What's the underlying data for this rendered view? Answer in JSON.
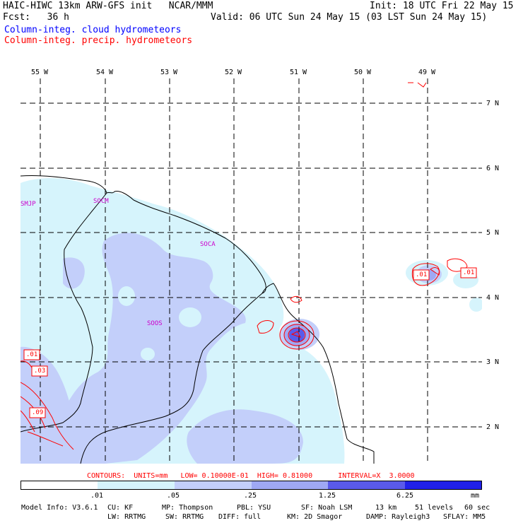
{
  "header": {
    "title": "HAIC-HIWC 13km ARW-GFS init   NCAR/MMM",
    "init": "Init: 18 UTC Fri 22 May 15",
    "fcst": "Fcst:   36 h",
    "valid": "Valid: 06 UTC Sun 24 May 15 (03 LST Sun 24 May 15)",
    "field_cloud": "Column-integ. cloud hydrometeors",
    "field_precip": "Column-integ. precip. hydrometeors",
    "cloud_color": "#0000ff",
    "precip_color": "#ff0000"
  },
  "map": {
    "lon_labels": [
      "55 W",
      "54 W",
      "53 W",
      "52 W",
      "51 W",
      "50 W",
      "49 W"
    ],
    "lat_labels": [
      "7 N",
      "6 N",
      "5 N",
      "4 N",
      "3 N",
      "2 N"
    ],
    "stations": [
      "SMJP",
      "SOCM",
      "SOCA",
      "SOOS"
    ],
    "contour_labels": [
      ".01",
      ".01",
      ".01",
      ".03",
      ".09"
    ],
    "station_color": "#cc00cc",
    "contour_color": "#ff0000"
  },
  "contour_info": {
    "text": "CONTOURS:  UNITS=mm   LOW= 0.10000E-01  HIGH= 0.81000      INTERVAL=X  3.0000"
  },
  "colorbar": {
    "labels": [
      ".01",
      ".05",
      ".25",
      "1.25",
      "6.25",
      "mm"
    ],
    "colors": [
      "#ffffff",
      "#d6f4fc",
      "#c3cffa",
      "#9fa8f4",
      "#5a5aea",
      "#2121e9"
    ]
  },
  "model_info": {
    "line1": [
      "Model Info: V3.6.1",
      "CU: KF",
      "MP: Thompson",
      "PBL: YSU",
      "SF: Noah LSM",
      "13 km",
      "51 levels",
      "60 sec"
    ],
    "line2": [
      "LW: RRTMG",
      "SW: RRTMG",
      "DIFF: full",
      "KM: 2D Smagor",
      "DAMP: Rayleigh3",
      "SFLAY: MM5"
    ]
  }
}
